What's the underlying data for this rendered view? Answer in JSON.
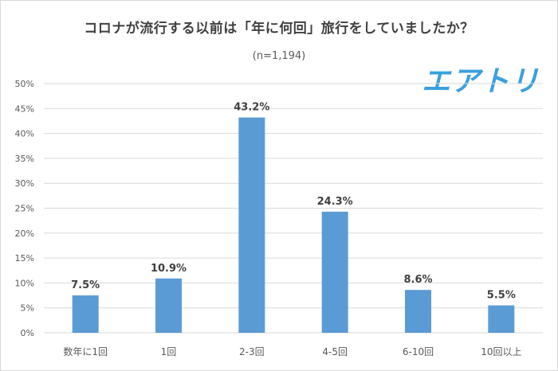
{
  "chart_data": {
    "type": "bar",
    "title": "コロナが流行する以前は「年に何回」旅行をしていましたか？",
    "subtitle": "(n=1,194)",
    "categories": [
      "数年に1回",
      "1回",
      "2-3回",
      "4-5回",
      "6-10回",
      "10回以上"
    ],
    "values": [
      7.5,
      10.9,
      43.2,
      24.3,
      8.6,
      5.5
    ],
    "data_labels": [
      "7.5%",
      "10.9%",
      "43.2%",
      "24.3%",
      "8.6%",
      "5.5%"
    ],
    "xlabel": "",
    "ylabel": "",
    "ylim": [
      0,
      50
    ],
    "yticks": [
      "0%",
      "5%",
      "10%",
      "15%",
      "20%",
      "25%",
      "30%",
      "35%",
      "40%",
      "45%",
      "50%"
    ],
    "ytick_values": [
      0,
      5,
      10,
      15,
      20,
      25,
      30,
      35,
      40,
      45,
      50
    ],
    "grid": true,
    "legend": "none",
    "bar_color": "#5b9bd5",
    "grid_color": "#d9d9d9"
  },
  "brand": {
    "logo_text": "エアトリ",
    "color": "#3ba0dd"
  }
}
